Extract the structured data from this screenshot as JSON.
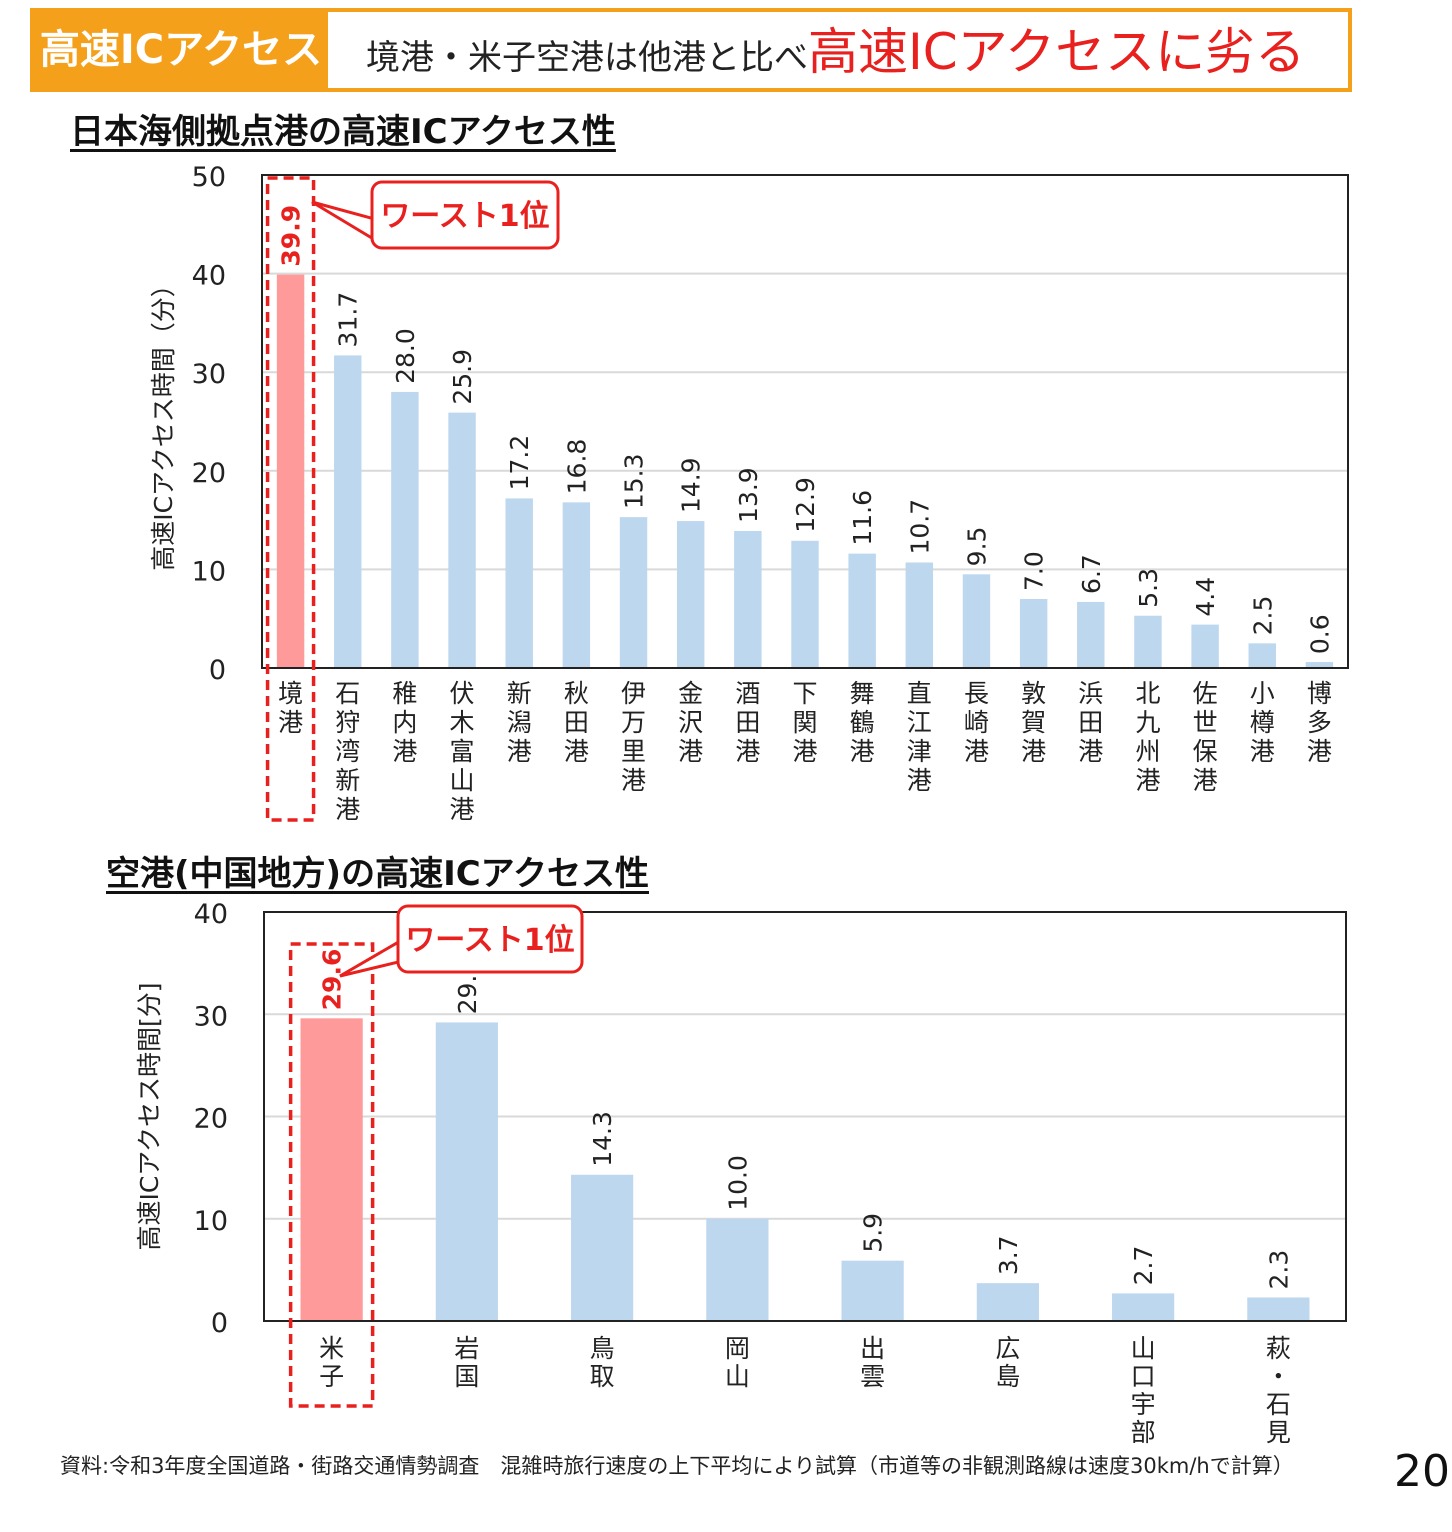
{
  "banner": {
    "tag": "高速ICアクセス",
    "headline_a": "境港・米子空港は他港と比べ",
    "headline_b": "高速ICアクセスに劣る"
  },
  "charts": {
    "ports_title": "日本海側拠点港の高速ICアクセス性",
    "airports_title": "空港(中国地方)の高速ICアクセス性",
    "callout": "ワースト1位"
  },
  "chart_data": [
    {
      "type": "bar",
      "title": "日本海側拠点港の高速ICアクセス性",
      "ylabel": "高速ICアクセス時間（分）",
      "ylim": [
        0,
        50
      ],
      "yticks": [
        0,
        10,
        20,
        30,
        40,
        50
      ],
      "grid": true,
      "categories": [
        "境港",
        "石狩湾新港",
        "稚内港",
        "伏木富山港",
        "新潟港",
        "秋田港",
        "伊万里港",
        "金沢港",
        "酒田港",
        "下関港",
        "舞鶴港",
        "直江津港",
        "長崎港",
        "敦賀港",
        "浜田港",
        "北九州港",
        "佐世保港",
        "小樽港",
        "博多港"
      ],
      "values": [
        39.9,
        31.7,
        28.0,
        25.9,
        17.2,
        16.8,
        15.3,
        14.9,
        13.9,
        12.9,
        11.6,
        10.7,
        9.5,
        7.0,
        6.7,
        5.3,
        4.4,
        2.5,
        0.6
      ],
      "labels": [
        "39.9",
        "31.7",
        "28.0",
        "25.9",
        "17.2",
        "16.8",
        "15.3",
        "14.9",
        "13.9",
        "12.9",
        "11.6",
        "10.7",
        "9.5",
        "7.0",
        "6.7",
        "5.3",
        "4.4",
        "2.5",
        "0.6"
      ],
      "highlight_index": 0,
      "colors": {
        "bar": "#bdd7ee",
        "highlight": "#ff9a9a",
        "accent": "#e8201e"
      }
    },
    {
      "type": "bar",
      "title": "空港(中国地方)の高速ICアクセス性",
      "ylabel": "高速ICアクセス時間[分]",
      "ylim": [
        0,
        40
      ],
      "yticks": [
        0,
        10,
        20,
        30,
        40
      ],
      "grid": true,
      "categories": [
        "米子",
        "岩国",
        "鳥取",
        "岡山",
        "出雲",
        "広島",
        "山口宇部",
        "萩・石見"
      ],
      "values": [
        29.6,
        29.2,
        14.3,
        10.0,
        5.9,
        3.7,
        2.7,
        2.3
      ],
      "labels": [
        "29.6",
        "29.2",
        "14.3",
        "10.0",
        "5.9",
        "3.7",
        "2.7",
        "2.3"
      ],
      "highlight_index": 0,
      "colors": {
        "bar": "#bdd7ee",
        "highlight": "#ff9a9a",
        "accent": "#e8201e"
      }
    }
  ],
  "footnote": "資料:令和3年度全国道路・街路交通情勢調査　混雑時旅行速度の上下平均により試算（市道等の非観測路線は速度30km/hで計算）",
  "page_number": "20"
}
